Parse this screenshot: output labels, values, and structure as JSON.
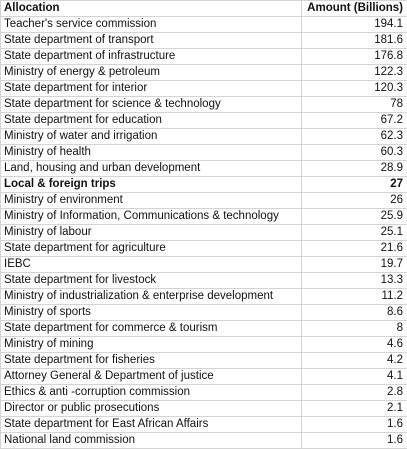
{
  "table": {
    "headers": {
      "allocation": "Allocation",
      "amount": "Amount (Billions)"
    },
    "rows": [
      {
        "allocation": "Teacher's service commission",
        "amount": "194.1",
        "bold": false
      },
      {
        "allocation": "State department of transport",
        "amount": "181.6",
        "bold": false
      },
      {
        "allocation": "State department of infrastructure",
        "amount": "176.8",
        "bold": false
      },
      {
        "allocation": "Ministry of energy & petroleum",
        "amount": "122.3",
        "bold": false
      },
      {
        "allocation": "State department for interior",
        "amount": "120.3",
        "bold": false
      },
      {
        "allocation": "State department for science & technology",
        "amount": "78",
        "bold": false
      },
      {
        "allocation": "State department for education",
        "amount": "67.2",
        "bold": false
      },
      {
        "allocation": "Ministry of water and irrigation",
        "amount": "62.3",
        "bold": false
      },
      {
        "allocation": "Ministry of health",
        "amount": "60.3",
        "bold": false
      },
      {
        "allocation": "Land, housing and urban development",
        "amount": "28.9",
        "bold": false
      },
      {
        "allocation": "Local & foreign trips",
        "amount": "27",
        "bold": true
      },
      {
        "allocation": "Ministry of environment",
        "amount": "26",
        "bold": false
      },
      {
        "allocation": "Ministry of Information, Communications & technology",
        "amount": "25.9",
        "bold": false
      },
      {
        "allocation": "Ministry of labour",
        "amount": "25.1",
        "bold": false
      },
      {
        "allocation": "State department for agriculture",
        "amount": "21.6",
        "bold": false
      },
      {
        "allocation": "IEBC",
        "amount": "19.7",
        "bold": false
      },
      {
        "allocation": "State department for livestock",
        "amount": "13.3",
        "bold": false
      },
      {
        "allocation": "Ministry of industrialization & enterprise development",
        "amount": "11.2",
        "bold": false
      },
      {
        "allocation": "Ministry of sports",
        "amount": "8.6",
        "bold": false
      },
      {
        "allocation": "State department for commerce & tourism",
        "amount": "8",
        "bold": false
      },
      {
        "allocation": "Ministry of mining",
        "amount": "4.6",
        "bold": false
      },
      {
        "allocation": "State department for fisheries",
        "amount": "4.2",
        "bold": false
      },
      {
        "allocation": "Attorney General & Department of justice",
        "amount": "4.1",
        "bold": false
      },
      {
        "allocation": "Ethics & anti -corruption commission",
        "amount": "2.8",
        "bold": false
      },
      {
        "allocation": "Director  or public prosecutions",
        "amount": "2.1",
        "bold": false
      },
      {
        "allocation": "State department for East African Affairs",
        "amount": "1.6",
        "bold": false
      },
      {
        "allocation": "National land commission",
        "amount": "1.6",
        "bold": false
      }
    ]
  }
}
